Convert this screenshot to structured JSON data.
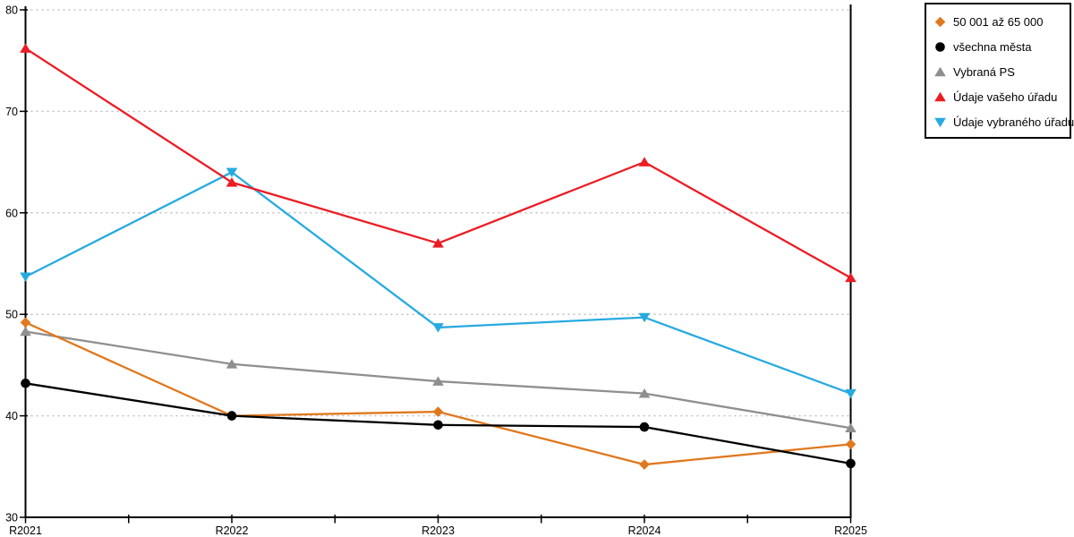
{
  "chart_data": {
    "type": "line",
    "title": "",
    "xlabel": "",
    "ylabel": "",
    "categories": [
      "R2021",
      "R2022",
      "R2023",
      "R2024",
      "R2025"
    ],
    "series": [
      {
        "name": "50 001 až 65 000",
        "color": "#E0781E",
        "marker": "diamond",
        "values": [
          49.2,
          40.0,
          40.4,
          35.2,
          37.2
        ]
      },
      {
        "name": "všechna města",
        "color": "#000000",
        "marker": "circle",
        "values": [
          43.2,
          40.0,
          39.1,
          38.9,
          35.3
        ]
      },
      {
        "name": "Vybraná PS",
        "color": "#8F8F8F",
        "marker": "triangle-up",
        "values": [
          48.3,
          45.1,
          43.4,
          42.2,
          38.8
        ]
      },
      {
        "name": "Údaje vašeho úřadu",
        "color": "#EC1C24",
        "marker": "triangle-up",
        "values": [
          76.2,
          63.0,
          57.0,
          65.0,
          53.6
        ]
      },
      {
        "name": "Údaje vybraného úřadu",
        "color": "#27AAE1",
        "marker": "triangle-down",
        "values": [
          53.7,
          64.0,
          48.7,
          49.7,
          42.2
        ]
      }
    ],
    "ylim": [
      30,
      80
    ],
    "y_ticks": [
      30,
      40,
      50,
      60,
      70,
      80
    ],
    "grid": "horizontal-dotted",
    "legend_position": "top-right-outside",
    "z_order": [
      2,
      0,
      1,
      4,
      3
    ]
  },
  "colors": {
    "background": "#FFFFFF",
    "axis": "#000000",
    "grid": "#B9B9B9",
    "legend_border": "#000000",
    "text": "#000000"
  }
}
